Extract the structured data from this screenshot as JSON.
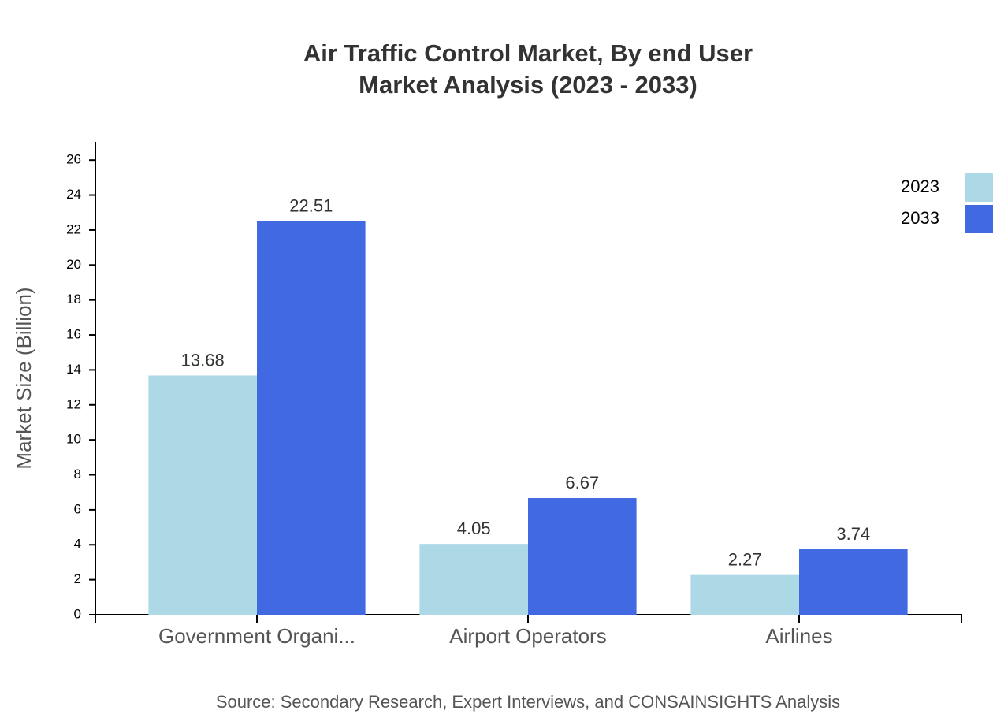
{
  "chart_data": {
    "type": "bar",
    "title": "Air Traffic Control Market, By end User",
    "subtitle": "Market Analysis (2023 - 2033)",
    "y_label": "Market Size (Billion)",
    "source": "Source: Secondary Research, Expert Interviews, and CONSAINSIGHTS Analysis",
    "categories": [
      "Government Organi...",
      "Airport Operators",
      "Airlines"
    ],
    "series": [
      {
        "name": "2023",
        "color": "#add8e6",
        "values": [
          13.68,
          4.05,
          2.27
        ]
      },
      {
        "name": "2033",
        "color": "#4169e1",
        "values": [
          22.51,
          6.67,
          3.74
        ]
      }
    ],
    "ylim": [
      0,
      27
    ],
    "yticks": [
      0,
      2,
      4,
      6,
      8,
      10,
      12,
      14,
      16,
      18,
      20,
      22,
      24,
      26
    ],
    "legend": "top-right"
  }
}
